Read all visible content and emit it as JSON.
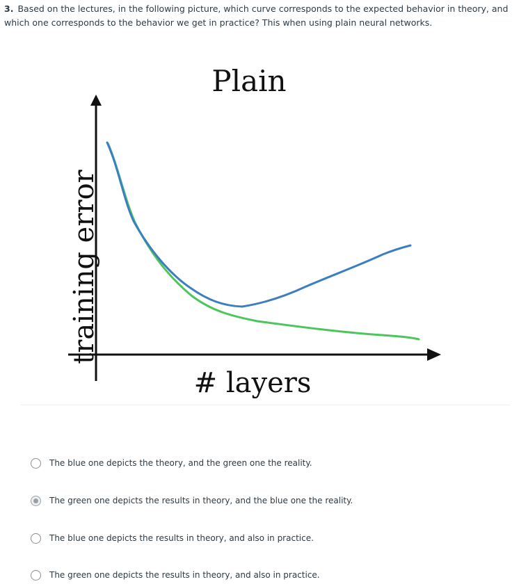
{
  "question": {
    "number": "3.",
    "text": "Based on the lectures, in the following picture, which curve corresponds to the expected behavior in theory, and which one corresponds to the behavior we get in practice? This when using plain neural networks."
  },
  "figure": {
    "title": "Plain",
    "ylabel": "training error",
    "xlabel": "# layers",
    "colors": {
      "blue_curve": "#3c7fc0",
      "green_curve": "#4cc65c",
      "axis": "#111111"
    }
  },
  "answers": [
    {
      "label": "The blue one depicts the theory, and the green one the reality.",
      "selected": false
    },
    {
      "label": "The green one depicts the results in theory, and the blue one the reality.",
      "selected": true
    },
    {
      "label": "The blue one depicts the results in theory, and also in practice.",
      "selected": false
    },
    {
      "label": "The green one depicts the results in theory, and also in practice.",
      "selected": false
    }
  ]
}
